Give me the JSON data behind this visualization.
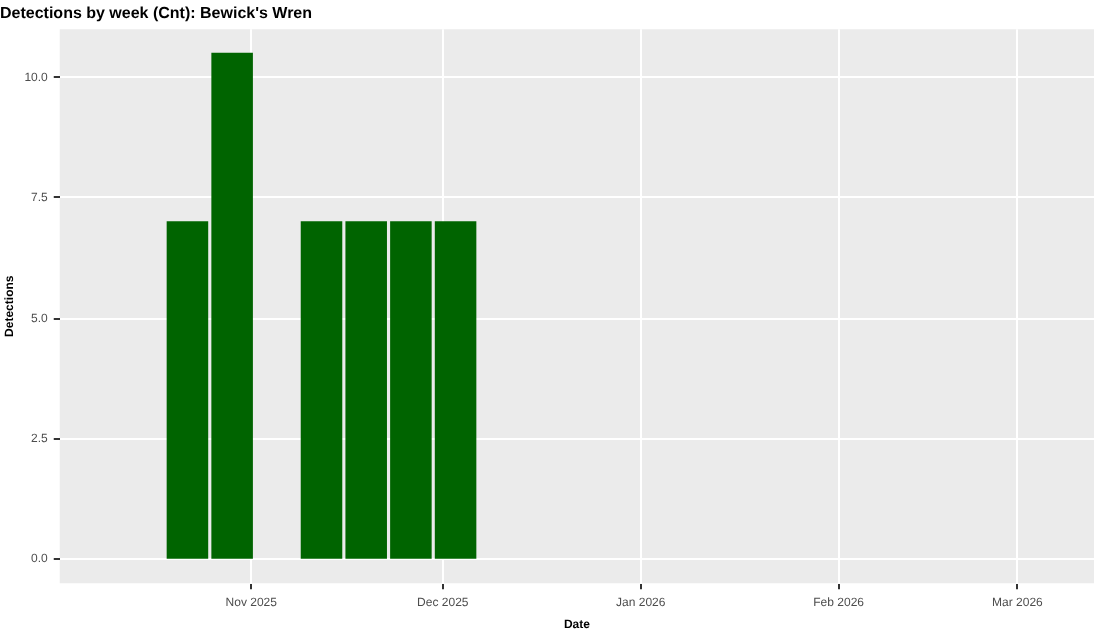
{
  "chart_data": {
    "type": "bar",
    "title": "Detections by week (Cnt): Bewick's Wren",
    "xlabel": "Date",
    "ylabel": "Detections",
    "x": [
      "2025-10-22",
      "2025-10-29",
      "2025-11-12",
      "2025-11-19",
      "2025-11-26",
      "2025-12-03"
    ],
    "values": [
      7,
      10.5,
      7,
      7,
      7,
      7
    ],
    "color": "#006400",
    "xlim": [
      "2025-10-02",
      "2026-03-13"
    ],
    "xticks": [
      {
        "value": "2025-11-01",
        "label": "Nov 2025"
      },
      {
        "value": "2025-12-01",
        "label": "Dec 2025"
      },
      {
        "value": "2026-01-01",
        "label": "Jan 2026"
      },
      {
        "value": "2026-02-01",
        "label": "Feb 2026"
      },
      {
        "value": "2026-03-01",
        "label": "Mar 2026"
      }
    ],
    "ylim": [
      -0.5,
      11
    ],
    "yticks": [
      {
        "value": 0,
        "label": "0.0"
      },
      {
        "value": 2.5,
        "label": "2.5"
      },
      {
        "value": 5,
        "label": "5.0"
      },
      {
        "value": 7.5,
        "label": "7.5"
      },
      {
        "value": 10,
        "label": "10.0"
      }
    ],
    "grid": true,
    "legend": false
  }
}
